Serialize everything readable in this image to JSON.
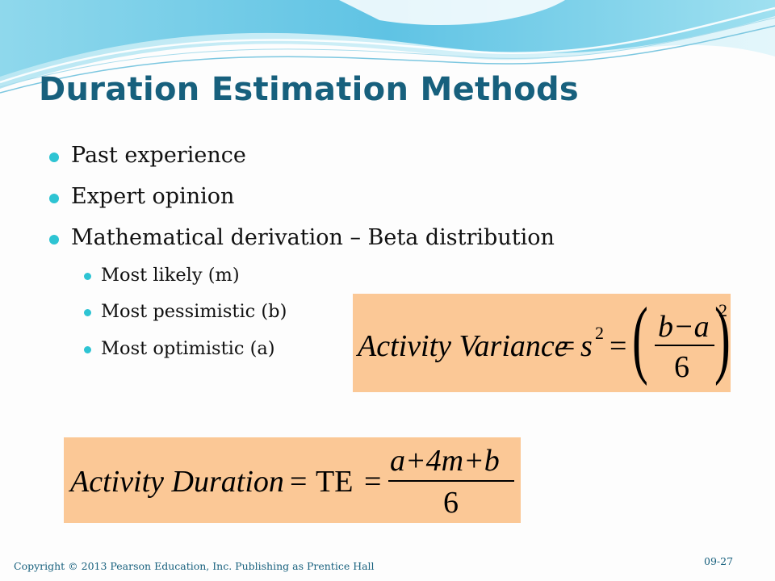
{
  "slide": {
    "title": "Duration Estimation Methods",
    "bullets": [
      "Past experience",
      "Expert opinion",
      "Mathematical derivation – Beta distribution"
    ],
    "sub_bullets": [
      "Most likely (m)",
      "Most pessimistic (b)",
      "Most optimistic (a)"
    ],
    "variance_formula": {
      "lhs": "Activity Variance",
      "eq1": "=",
      "s": "s",
      "s_exp": "2",
      "eq2": "=",
      "numerator": "b−a",
      "denominator": "6",
      "exponent": "2"
    },
    "duration_formula": {
      "lhs": "Activity Duration",
      "eq1": "=",
      "te": "TE",
      "eq2": "=",
      "numerator": "a+4m+b",
      "denominator": "6"
    },
    "footer": "Copyright © 2013 Pearson Education, Inc. Publishing as Prentice Hall",
    "page_number": "09-27"
  },
  "colors": {
    "title": "#17607d",
    "bullet": "#2ec4d3",
    "formula_bg": "#fbc896",
    "footer": "#17607d"
  }
}
